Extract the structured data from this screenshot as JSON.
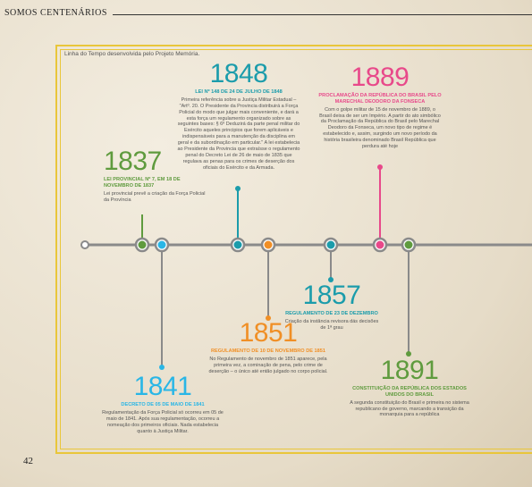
{
  "header": {
    "title": "SOMOS CENTENÁRIOS"
  },
  "subtitle": "Linha do Tempo desenvolvida pelo Projeto Memória.",
  "page_number": "42",
  "colors": {
    "green": "#5f9b3e",
    "blue": "#29b6e6",
    "teal": "#1b9cab",
    "orange": "#f08f26",
    "pink": "#e8498a",
    "gray_line": "#8a8a8a",
    "frame": "#e9c63a"
  },
  "events": [
    {
      "id": "1837",
      "year": "1837",
      "color": "green",
      "title": "LEI PROVINCIAL Nº 7, EM 18 DE NOVEMBRO DE 1837",
      "body": "Lei provincial prevê a criação da Força Policial da Província"
    },
    {
      "id": "1841",
      "year": "1841",
      "color": "blue",
      "title": "DECRETO DE 05 DE MAIO DE 1841",
      "body": "Regulamentação da Força Policial só ocorreu em 05 de maio de 1841. Após sua regulamentação, ocorreu a nomeação dos primeiros oficiais. Nada estabelecia quanto à Justiça Militar."
    },
    {
      "id": "1848",
      "year": "1848",
      "color": "teal",
      "title": "LEI Nº 148 DE 24 DE JULHO DE 1848",
      "body": "Primeira referência sobre a Justiça Militar Estadual – \"Artº. 20. O Presidente da Provincia distribuirá a Força Policial do modo que julgar mais conveniente, e dará a esta força um regulamento organizado sobre as seguintes bases: § 6º Deduzirá da parte penal militar do Exército aqueles principios que forem aplicáveis e indispensáveis para a manutenção da disciplina em geral e da subordinação em particular.\" A lei estabelecia ao Presidente da Provincia que extraísse o regulamento penal do Decreto Lei de 26 de maio de 1835 que regulava as penas para os crimes de deserção dos oficiais do Exército e da Armada."
    },
    {
      "id": "1851",
      "year": "1851",
      "color": "orange",
      "title": "REGULAMENTO DE 10 DE NOVEMBRO DE 1851",
      "body": "No Regulamento de novembro de 1851 aparece, pela primeira vez, a cominação de pena, pelo crime de deserção – o único até então julgado no corpo policial."
    },
    {
      "id": "1857",
      "year": "1857",
      "color": "teal",
      "title": "REGULAMENTO DE 23 DE DEZEMBRO",
      "body": "Criação da instância revisora dás decisões de 1ª grau"
    },
    {
      "id": "1889",
      "year": "1889",
      "color": "pink",
      "title": "PROCLAMAÇÃO DA REPÚBLICA DO BRASIL PELO MARECHAL DEODORO DA FONSECA",
      "body": "Com o golpe militar de 15 de novembro de 1889, o Brasil deixa de ser um Império. A partir do ato simbólico da Proclamação da República do Brasil pelo Marechal Deodoro da Fonseca, um novo tipo de regime é estabelecido e, assim, surgindo um novo período da história brasileira denominado Brasil República que perdura até hoje"
    },
    {
      "id": "1891",
      "year": "1891",
      "color": "green",
      "title": "CONSTITUIÇÃO DA REPÚBLICA DOS ESTADOS UNIDOS DO BRASIL",
      "body": "A segunda constituição do Brasil e primeira no sistema republicano de governo, marcando a transição da monarquia para a república"
    }
  ]
}
